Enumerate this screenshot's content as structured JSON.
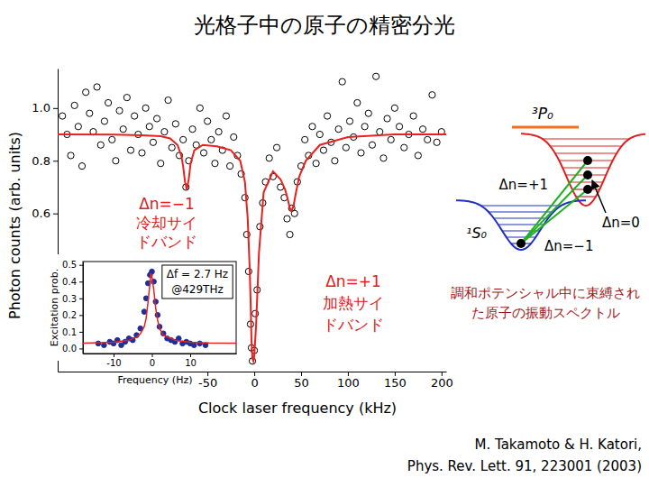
{
  "title": "光格子中の原子の精密分光",
  "chart_data": [
    {
      "type": "scatter",
      "xlabel": "Clock laser frequency (kHz)",
      "ylabel": "Photon counts (arb. units)",
      "xlim": [
        -210,
        205
      ],
      "ylim": [
        0,
        1.15
      ],
      "xticks": [
        -50,
        0,
        50,
        100,
        150,
        200
      ],
      "yticks": [
        0.6,
        0.8,
        {
          "value": 1,
          "label": "1.0"
        }
      ],
      "series": [
        {
          "type": "scatter",
          "marker": "open-circle",
          "color": "#000000",
          "x": [
            -205,
            -200,
            -196,
            -192,
            -188,
            -184,
            -180,
            -176,
            -172,
            -168,
            -164,
            -160,
            -156,
            -152,
            -148,
            -144,
            -140,
            -136,
            -132,
            -128,
            -124,
            -120,
            -116,
            -112,
            -108,
            -104,
            -100,
            -96,
            -92,
            -88,
            -84,
            -80,
            -76,
            -73,
            -70,
            -66,
            -62,
            -58,
            -54,
            -50,
            -46,
            -42,
            -38,
            -34,
            -30,
            -26,
            -22,
            -18,
            -14,
            -10,
            -8,
            -6,
            -4,
            -3,
            -2,
            0,
            1,
            3,
            6,
            9,
            12,
            16,
            20,
            24,
            28,
            32,
            35,
            38,
            40,
            43,
            46,
            50,
            54,
            58,
            62,
            66,
            70,
            74,
            78,
            82,
            86,
            90,
            94,
            98,
            102,
            106,
            110,
            114,
            118,
            122,
            126,
            130,
            134,
            138,
            142,
            146,
            150,
            155,
            160,
            165,
            170,
            175,
            180,
            185,
            190,
            195,
            200
          ],
          "values": [
            0.97,
            0.9,
            0.82,
            1.01,
            0.93,
            0.78,
            1.06,
            0.98,
            0.91,
            1.08,
            0.86,
            0.95,
            1.02,
            0.88,
            0.8,
            0.99,
            0.92,
            1.04,
            0.84,
            0.97,
            0.9,
            0.83,
            1.0,
            0.93,
            0.87,
            0.96,
            0.79,
            0.91,
            1.03,
            0.85,
            0.94,
            0.82,
            0.88,
            0.7,
            0.8,
            0.92,
            0.86,
            1.0,
            0.83,
            0.95,
            0.88,
            0.79,
            0.91,
            0.84,
            0.97,
            0.78,
            0.89,
            0.82,
            0.75,
            0.66,
            0.52,
            0.38,
            0.18,
            0.09,
            0.04,
            0.08,
            0.22,
            0.31,
            0.55,
            0.64,
            0.72,
            0.81,
            0.74,
            0.85,
            0.7,
            0.66,
            0.58,
            0.52,
            0.62,
            0.6,
            0.72,
            0.78,
            0.88,
            0.82,
            0.93,
            0.79,
            0.9,
            0.84,
            0.97,
            0.87,
            0.8,
            0.92,
            1.1,
            0.85,
            0.95,
            0.89,
            1.02,
            0.83,
            0.93,
            0.98,
            0.86,
            1.12,
            0.91,
            0.81,
            0.96,
            0.88,
            1.0,
            0.93,
            0.85,
            0.9,
            0.97,
            0.82,
            0.92,
            0.88,
            1.05,
            0.87,
            0.91
          ]
        },
        {
          "type": "line",
          "line_style": "solid",
          "color": "#e8201e",
          "x": [
            -210,
            -150,
            -120,
            -100,
            -90,
            -82,
            -78,
            -76,
            -74,
            -72,
            -70,
            -68,
            -64,
            -55,
            -40,
            -25,
            -15,
            -10,
            -7,
            -5,
            -4,
            -3,
            -2,
            -1,
            0,
            2,
            5,
            10,
            20,
            28,
            33,
            36,
            38,
            40,
            42,
            44,
            48,
            55,
            70,
            100,
            150,
            205
          ],
          "values": [
            0.9,
            0.899,
            0.897,
            0.893,
            0.885,
            0.86,
            0.82,
            0.78,
            0.72,
            0.69,
            0.73,
            0.79,
            0.84,
            0.86,
            0.855,
            0.84,
            0.8,
            0.72,
            0.58,
            0.4,
            0.28,
            0.12,
            0.05,
            0.04,
            0.06,
            0.18,
            0.45,
            0.68,
            0.76,
            0.73,
            0.69,
            0.65,
            0.62,
            0.61,
            0.63,
            0.67,
            0.74,
            0.8,
            0.86,
            0.89,
            0.9,
            0.9
          ]
        }
      ],
      "annotations": [
        {
          "lines": [
            "Δn=−1",
            "冷却サイ",
            "ドバンド"
          ]
        },
        {
          "lines": [
            "Δn=+1",
            "加熱サイ",
            "ドバンド"
          ]
        }
      ]
    },
    {
      "type": "scatter",
      "xlabel": "Frequency (Hz)",
      "ylabel": "Excitation prob.",
      "xlim": [
        -18,
        22
      ],
      "ylim": [
        -0.03,
        0.52
      ],
      "xticks": [
        -10,
        0,
        10
      ],
      "yticks": [
        {
          "value": 0,
          "label": "0.0"
        },
        0.1,
        0.2,
        0.3,
        0.4,
        0.5
      ],
      "series": [
        {
          "type": "scatter",
          "marker": "circle",
          "color": "#1f2f9a",
          "x": [
            -14,
            -12.5,
            -11,
            -10,
            -9,
            -8,
            -7,
            -6,
            -5,
            -4,
            -3,
            -2,
            -1.5,
            -1,
            -0.5,
            0,
            0.5,
            1,
            1.5,
            2,
            3,
            4,
            5,
            6,
            7,
            8,
            9,
            10,
            11,
            12.5,
            14
          ],
          "values": [
            0.03,
            0.02,
            0.04,
            0.03,
            0.05,
            0.02,
            0.04,
            0.06,
            0.05,
            0.08,
            0.12,
            0.22,
            0.3,
            0.39,
            0.44,
            0.46,
            0.4,
            0.28,
            0.2,
            0.13,
            0.09,
            0.06,
            0.05,
            0.04,
            0.06,
            0.03,
            0.04,
            0.03,
            0.02,
            0.03,
            0.02
          ]
        },
        {
          "type": "line",
          "line_style": "solid",
          "color": "#e8201e",
          "x": [
            -18,
            -10,
            -6,
            -4,
            -3,
            -2,
            -1.5,
            -1,
            -0.5,
            -0.3,
            0,
            0.5,
            1,
            1.5,
            2,
            3,
            4,
            6,
            10,
            15,
            22
          ],
          "values": [
            0.032,
            0.037,
            0.049,
            0.068,
            0.089,
            0.13,
            0.18,
            0.28,
            0.39,
            0.45,
            0.43,
            0.35,
            0.24,
            0.17,
            0.12,
            0.08,
            0.07,
            0.05,
            0.037,
            0.033,
            0.032
          ]
        }
      ],
      "annotations": [
        {
          "lines": [
            "Δf = 2.7 Hz",
            "@429THz"
          ]
        }
      ]
    }
  ],
  "diagram": {
    "states": [
      "³P₀",
      "¹S₀"
    ],
    "transitions": [
      "Δn=+1",
      "Δn=0",
      "Δn=−1"
    ],
    "caption": [
      "調和ポテンシャル中に束縛され",
      "た原子の振動スペクトル"
    ]
  },
  "citation": [
    "M. Takamoto & H. Katori,",
    "Phys. Rev. Lett. 91, 223001 (2003)"
  ]
}
